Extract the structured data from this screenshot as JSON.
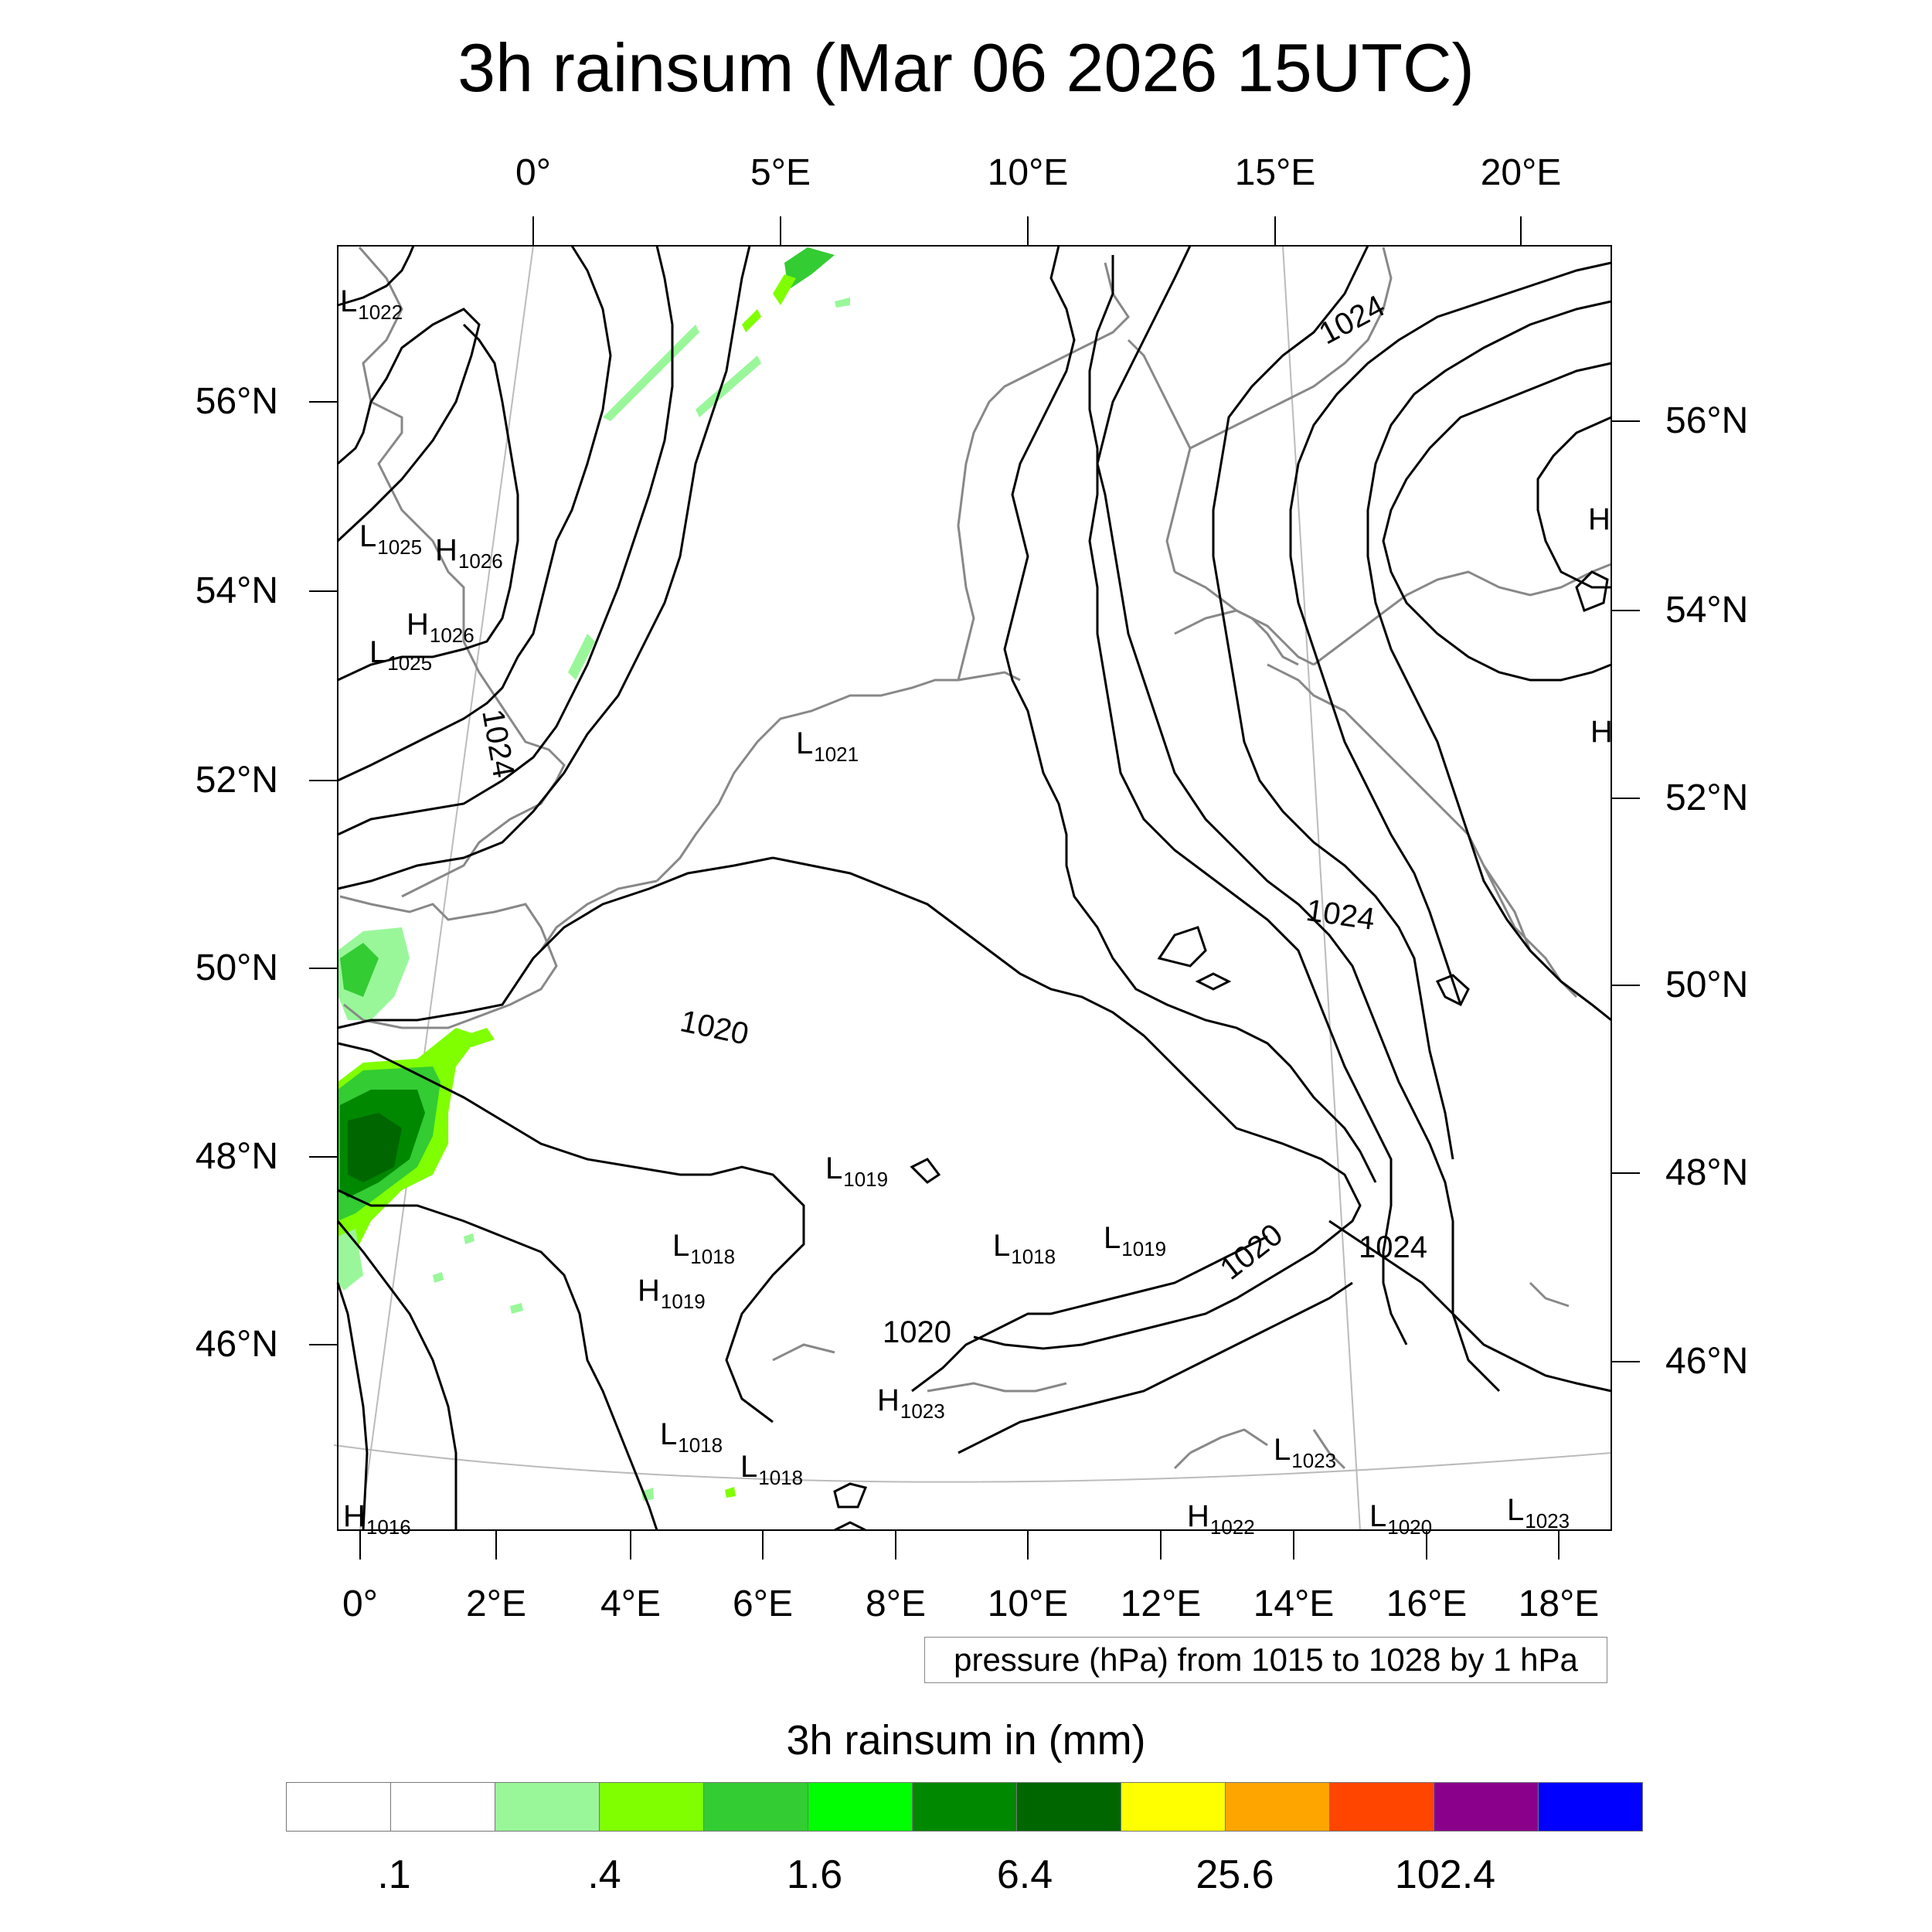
{
  "title": "3h rainsum (Mar 06 2026 15UTC)",
  "top_axis": {
    "labels": [
      {
        "id": "0",
        "text": "0°"
      },
      {
        "id": "5e",
        "text": "5°E"
      },
      {
        "id": "10e",
        "text": "10°E"
      },
      {
        "id": "15e",
        "text": "15°E"
      },
      {
        "id": "20e",
        "text": "20°E"
      }
    ]
  },
  "bottom_axis": {
    "labels": [
      {
        "id": "0",
        "text": "0°"
      },
      {
        "id": "2e",
        "text": "2°E"
      },
      {
        "id": "4e",
        "text": "4°E"
      },
      {
        "id": "6e",
        "text": "6°E"
      },
      {
        "id": "8e",
        "text": "8°E"
      },
      {
        "id": "10e",
        "text": "10°E"
      },
      {
        "id": "12e",
        "text": "12°E"
      },
      {
        "id": "14e",
        "text": "14°E"
      },
      {
        "id": "16e",
        "text": "16°E"
      },
      {
        "id": "18e",
        "text": "18°E"
      }
    ]
  },
  "left_axis": {
    "labels": [
      "56°N",
      "54°N",
      "52°N",
      "50°N",
      "48°N",
      "46°N"
    ]
  },
  "right_axis": {
    "labels": [
      "56°N",
      "54°N",
      "52°N",
      "50°N",
      "48°N",
      "46°N"
    ]
  },
  "info_box": "pressure (hPa) from 1015 to 1028 by 1 hPa",
  "pressure_contour_labels": [
    "1024",
    "1024",
    "1020",
    "1024",
    "1020",
    "1024",
    "1020"
  ],
  "pressure_centers": [
    {
      "type": "L",
      "value": "1022"
    },
    {
      "type": "L",
      "value": "1025"
    },
    {
      "type": "H",
      "value": "1026"
    },
    {
      "type": "H",
      "value": "1026"
    },
    {
      "type": "L",
      "value": "1025"
    },
    {
      "type": "L",
      "value": "1021"
    },
    {
      "type": "L",
      "value": "1019"
    },
    {
      "type": "L",
      "value": "1018"
    },
    {
      "type": "H",
      "value": "1019"
    },
    {
      "type": "L",
      "value": "1018"
    },
    {
      "type": "L",
      "value": "1019"
    },
    {
      "type": "H",
      "value": "1023"
    },
    {
      "type": "L",
      "value": "1018"
    },
    {
      "type": "L",
      "value": "1018"
    },
    {
      "type": "L",
      "value": "1023"
    },
    {
      "type": "H",
      "value": "1016"
    },
    {
      "type": "H",
      "value": "1022"
    },
    {
      "type": "L",
      "value": "1020"
    },
    {
      "type": "L",
      "value": "1023"
    },
    {
      "type": "H",
      "value": ""
    },
    {
      "type": "H",
      "value": ""
    }
  ],
  "legend": {
    "title": "3h rainsum in (mm)",
    "colors": [
      "#ffffff",
      "#ffffff",
      "#99f799",
      "#80ff00",
      "#33cc33",
      "#00ff00",
      "#008800",
      "#006600",
      "#ffff00",
      "#ffa500",
      "#ff4500",
      "#8b008b",
      "#0000ff"
    ],
    "labels": [
      ".1",
      ".4",
      "1.6",
      "6.4",
      "25.6",
      "102.4"
    ]
  },
  "colors": {
    "coastline": "#888888",
    "isobar": "#000000",
    "graticule": "#bbbbbb"
  }
}
